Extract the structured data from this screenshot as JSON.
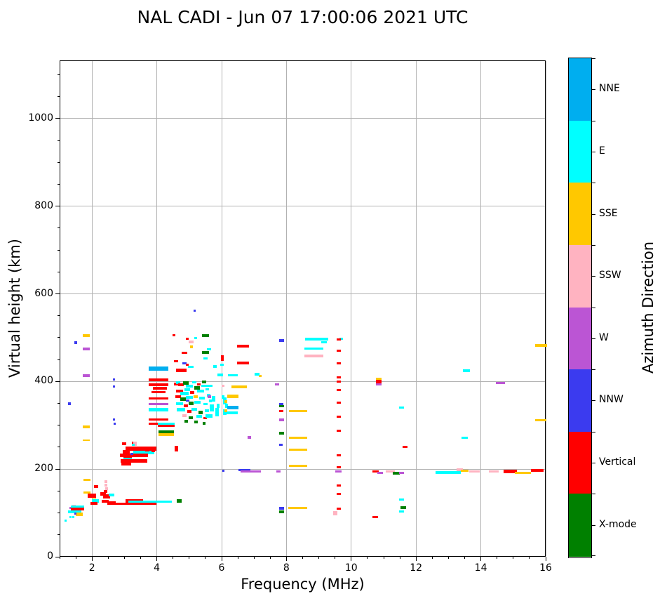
{
  "title": "NAL CADI - Jun 07 17:00:06 2021 UTC",
  "chart_data": {
    "type": "scatter",
    "title": "NAL CADI - Jun 07 17:00:06 2021 UTC",
    "xlabel": "Frequency (MHz)",
    "ylabel": "Virtual height (km)",
    "xlim": [
      1,
      16
    ],
    "ylim": [
      0,
      1133
    ],
    "xticks": [
      2,
      4,
      6,
      8,
      10,
      12,
      14,
      16
    ],
    "yticks": [
      0,
      200,
      400,
      600,
      800,
      1000
    ],
    "x_minor_step": 0.5,
    "y_minor_step": 50,
    "grid": true,
    "grid_color": "#b2b2b2",
    "colorbar": {
      "title": "Azimuth Direction",
      "segments": [
        {
          "key": "NNE",
          "label": "NNE",
          "color": "#00aeef"
        },
        {
          "key": "E",
          "label": "E",
          "color": "#00ffff"
        },
        {
          "key": "SSE",
          "label": "SSE",
          "color": "#ffc800"
        },
        {
          "key": "SSW",
          "label": "SSW",
          "color": "#ffb3c1"
        },
        {
          "key": "W",
          "label": "W",
          "color": "#bb55d4"
        },
        {
          "key": "NNW",
          "label": "NNW",
          "color": "#3b3bef"
        },
        {
          "key": "V",
          "label": "Vertical",
          "color": "#ff0000"
        },
        {
          "key": "X",
          "label": "X-mode",
          "color": "#008000"
        }
      ]
    },
    "point_format": "[freq_MHz, height_km, direction_key, width_px, height_px]",
    "points": [
      [
        1.33,
        112,
        "W",
        3,
        3
      ],
      [
        1.45,
        113,
        "SSW",
        5,
        7
      ],
      [
        1.38,
        107,
        "V",
        4,
        4
      ],
      [
        1.3,
        102,
        "E",
        4,
        4
      ],
      [
        1.55,
        114,
        "E",
        19,
        4
      ],
      [
        1.55,
        109,
        "V",
        19,
        4
      ],
      [
        1.5,
        103,
        "E",
        16,
        4
      ],
      [
        1.6,
        97,
        "SSE",
        10,
        5
      ],
      [
        1.48,
        99,
        "NNW",
        3,
        3
      ],
      [
        1.33,
        91,
        "E",
        3,
        3
      ],
      [
        1.43,
        91,
        "E",
        3,
        3
      ],
      [
        1.19,
        83,
        "E",
        3,
        3
      ],
      [
        1.85,
        176,
        "SSE",
        10,
        3
      ],
      [
        1.85,
        147,
        "SSE",
        10,
        3
      ],
      [
        2.0,
        140,
        "V",
        12,
        6
      ],
      [
        2.07,
        130,
        "SSE",
        6,
        3
      ],
      [
        2.1,
        127,
        "E",
        10,
        5
      ],
      [
        2.05,
        122,
        "V",
        10,
        4
      ],
      [
        2.13,
        160,
        "V",
        6,
        4
      ],
      [
        2.35,
        143,
        "V",
        8,
        5
      ],
      [
        2.45,
        138,
        "V",
        10,
        6
      ],
      [
        2.6,
        141,
        "E",
        8,
        4
      ],
      [
        2.43,
        172,
        "SSW",
        4,
        4
      ],
      [
        2.43,
        163,
        "SSW",
        4,
        4
      ],
      [
        2.45,
        155,
        "SSW",
        4,
        4
      ],
      [
        2.42,
        149,
        "V",
        5,
        4
      ],
      [
        2.4,
        126,
        "V",
        10,
        4
      ],
      [
        2.6,
        123,
        "V",
        12,
        5
      ],
      [
        3.3,
        127,
        "V",
        25,
        5
      ],
      [
        3.35,
        121,
        "V",
        58,
        3
      ],
      [
        3.8,
        125,
        "E",
        62,
        3
      ],
      [
        4.68,
        127,
        "X",
        7,
        5
      ],
      [
        2.68,
        404,
        "NNW",
        3,
        3
      ],
      [
        2.68,
        388,
        "NNW",
        3,
        3
      ],
      [
        2.68,
        314,
        "NNW",
        3,
        3
      ],
      [
        2.7,
        304,
        "NNW",
        3,
        3
      ],
      [
        3.27,
        260,
        "V",
        4,
        3
      ],
      [
        3.33,
        258,
        "SSW",
        5,
        6
      ],
      [
        3.05,
        240,
        "V",
        10,
        5
      ],
      [
        3.5,
        247,
        "V",
        44,
        6
      ],
      [
        3.6,
        238,
        "E",
        30,
        5
      ],
      [
        3.3,
        231,
        "V",
        40,
        5
      ],
      [
        3.1,
        227,
        "V",
        12,
        4
      ],
      [
        3.1,
        223,
        "E",
        12,
        3
      ],
      [
        3.3,
        219,
        "V",
        38,
        5
      ],
      [
        3.05,
        212,
        "V",
        14,
        5
      ],
      [
        3.22,
        234,
        "NNW",
        4,
        3
      ],
      [
        3.28,
        256,
        "E",
        4,
        3
      ],
      [
        3.0,
        258,
        "V",
        6,
        4
      ],
      [
        3.7,
        243,
        "V",
        6,
        3
      ],
      [
        3.9,
        241,
        "V",
        5,
        3
      ],
      [
        1.82,
        505,
        "SSE",
        10,
        4
      ],
      [
        1.5,
        488,
        "NNW",
        4,
        4
      ],
      [
        1.82,
        474,
        "W",
        10,
        4
      ],
      [
        1.82,
        414,
        "W",
        10,
        4
      ],
      [
        1.31,
        350,
        "NNW",
        4,
        4
      ],
      [
        1.82,
        296,
        "SSE",
        10,
        4
      ],
      [
        1.82,
        266,
        "SSE",
        10,
        2
      ],
      [
        4.05,
        430,
        "NNE",
        28,
        6
      ],
      [
        4.05,
        404,
        "V",
        28,
        4
      ],
      [
        4.05,
        392,
        "V",
        28,
        4
      ],
      [
        4.1,
        385,
        "V",
        20,
        4
      ],
      [
        4.05,
        376,
        "V",
        20,
        3
      ],
      [
        4.05,
        362,
        "V",
        28,
        3
      ],
      [
        4.05,
        349,
        "W",
        28,
        3
      ],
      [
        4.05,
        335,
        "E",
        28,
        5
      ],
      [
        4.05,
        314,
        "V",
        28,
        3
      ],
      [
        4.05,
        303,
        "V",
        28,
        3
      ],
      [
        4.3,
        304,
        "E",
        24,
        3
      ],
      [
        4.3,
        299,
        "V",
        24,
        3
      ],
      [
        4.28,
        285,
        "X",
        22,
        4
      ],
      [
        4.28,
        279,
        "SSE",
        22,
        4
      ],
      [
        4.6,
        250,
        "V",
        5,
        4
      ],
      [
        4.6,
        243,
        "V",
        5,
        4
      ],
      [
        4.6,
        394,
        "V",
        6,
        4
      ],
      [
        4.65,
        398,
        "E",
        6,
        4
      ],
      [
        4.75,
        392,
        "V",
        8,
        4
      ],
      [
        4.9,
        396,
        "X",
        8,
        5
      ],
      [
        5.0,
        390,
        "E",
        10,
        4
      ],
      [
        5.15,
        398,
        "E",
        6,
        3
      ],
      [
        5.3,
        394,
        "V",
        5,
        3
      ],
      [
        5.45,
        399,
        "X",
        6,
        4
      ],
      [
        5.25,
        386,
        "X",
        8,
        5
      ],
      [
        4.95,
        382,
        "E",
        8,
        4
      ],
      [
        4.7,
        378,
        "V",
        10,
        4
      ],
      [
        4.85,
        372,
        "E",
        12,
        5
      ],
      [
        5.1,
        375,
        "V",
        6,
        4
      ],
      [
        5.35,
        378,
        "E",
        10,
        4
      ],
      [
        5.55,
        383,
        "E",
        5,
        3
      ],
      [
        5.55,
        390,
        "E",
        16,
        3
      ],
      [
        4.65,
        366,
        "V",
        8,
        4
      ],
      [
        4.8,
        360,
        "X",
        8,
        5
      ],
      [
        5.0,
        363,
        "E",
        10,
        4
      ],
      [
        5.2,
        366,
        "SSE",
        6,
        4
      ],
      [
        5.4,
        362,
        "E",
        8,
        4
      ],
      [
        5.6,
        368,
        "E",
        5,
        4
      ],
      [
        4.7,
        350,
        "E",
        10,
        4
      ],
      [
        4.9,
        345,
        "V",
        6,
        4
      ],
      [
        5.05,
        350,
        "X",
        7,
        5
      ],
      [
        5.25,
        352,
        "E",
        9,
        4
      ],
      [
        5.5,
        348,
        "E",
        6,
        3
      ],
      [
        5.65,
        355,
        "E",
        4,
        4
      ],
      [
        4.75,
        336,
        "E",
        12,
        5
      ],
      [
        5.0,
        332,
        "V",
        6,
        4
      ],
      [
        5.15,
        336,
        "E",
        8,
        4
      ],
      [
        5.35,
        330,
        "X",
        6,
        5
      ],
      [
        5.55,
        334,
        "E",
        6,
        4
      ],
      [
        4.85,
        322,
        "SSW",
        6,
        4
      ],
      [
        5.05,
        318,
        "X",
        6,
        4
      ],
      [
        5.3,
        320,
        "E",
        8,
        4
      ],
      [
        5.5,
        316,
        "V",
        5,
        3
      ],
      [
        4.9,
        310,
        "X",
        5,
        4
      ],
      [
        5.2,
        308,
        "X",
        5,
        4
      ],
      [
        5.45,
        305,
        "X",
        4,
        4
      ],
      [
        5.6,
        322,
        "E",
        10,
        5
      ],
      [
        5.7,
        340,
        "E",
        6,
        10
      ],
      [
        5.75,
        360,
        "E",
        5,
        8
      ],
      [
        5.85,
        330,
        "E",
        5,
        12
      ],
      [
        5.9,
        345,
        "E",
        4,
        6
      ],
      [
        6.1,
        330,
        "E",
        5,
        8
      ],
      [
        6.15,
        345,
        "E",
        4,
        6
      ],
      [
        6.05,
        365,
        "E",
        4,
        5
      ],
      [
        5.62,
        365,
        "W",
        5,
        4
      ],
      [
        4.95,
        356,
        "NNW",
        5,
        3
      ],
      [
        6.1,
        355,
        "E",
        5,
        10
      ],
      [
        5.17,
        561,
        "NNW",
        3,
        3
      ],
      [
        4.53,
        505,
        "V",
        4,
        3
      ],
      [
        4.94,
        497,
        "V",
        4,
        3
      ],
      [
        5.05,
        490,
        "SSW",
        7,
        4
      ],
      [
        5.2,
        499,
        "E",
        4,
        3
      ],
      [
        5.5,
        505,
        "X",
        10,
        4
      ],
      [
        5.08,
        479,
        "SSE",
        4,
        4
      ],
      [
        5.6,
        474,
        "E",
        6,
        3
      ],
      [
        4.85,
        466,
        "V",
        8,
        3
      ],
      [
        5.5,
        466,
        "X",
        10,
        4
      ],
      [
        5.5,
        452,
        "E",
        6,
        3
      ],
      [
        4.6,
        446,
        "V",
        6,
        3
      ],
      [
        4.85,
        442,
        "NNW",
        6,
        3
      ],
      [
        4.95,
        439,
        "V",
        4,
        3
      ],
      [
        5.05,
        433,
        "E",
        8,
        3
      ],
      [
        4.75,
        426,
        "V",
        15,
        5
      ],
      [
        5.8,
        435,
        "E",
        5,
        4
      ],
      [
        6.03,
        454,
        "V",
        4,
        8
      ],
      [
        6.0,
        438,
        "E",
        5,
        3
      ],
      [
        5.95,
        415,
        "E",
        8,
        4
      ],
      [
        6.05,
        390,
        "SSW",
        4,
        3
      ],
      [
        6.65,
        481,
        "V",
        17,
        4
      ],
      [
        6.65,
        442,
        "V",
        17,
        4
      ],
      [
        6.35,
        414,
        "E",
        14,
        3
      ],
      [
        7.2,
        412,
        "SSE",
        4,
        3
      ],
      [
        7.1,
        417,
        "E",
        7,
        4
      ],
      [
        7.85,
        494,
        "NNW",
        7,
        4
      ],
      [
        7.7,
        394,
        "W",
        6,
        3
      ],
      [
        6.55,
        388,
        "SSE",
        22,
        4
      ],
      [
        6.35,
        366,
        "SSE",
        16,
        5
      ],
      [
        6.35,
        340,
        "NNE",
        16,
        5
      ],
      [
        6.3,
        328,
        "E",
        18,
        4
      ],
      [
        6.12,
        354,
        "SSE",
        4,
        4
      ],
      [
        6.12,
        333,
        "SSE",
        4,
        4
      ],
      [
        6.85,
        272,
        "W",
        5,
        4
      ],
      [
        7.85,
        348,
        "NNW",
        6,
        3
      ],
      [
        7.85,
        343,
        "X",
        7,
        3
      ],
      [
        7.85,
        332,
        "V",
        6,
        3
      ],
      [
        7.85,
        312,
        "W",
        7,
        4
      ],
      [
        7.85,
        282,
        "X",
        7,
        4
      ],
      [
        7.82,
        255,
        "NNW",
        5,
        3
      ],
      [
        7.85,
        110,
        "NNW",
        7,
        4
      ],
      [
        7.85,
        103,
        "X",
        7,
        4
      ],
      [
        8.35,
        332,
        "SSE",
        26,
        3
      ],
      [
        8.35,
        272,
        "SSE",
        26,
        3
      ],
      [
        8.35,
        244,
        "SSE",
        26,
        3
      ],
      [
        8.35,
        208,
        "SSE",
        26,
        3
      ],
      [
        8.35,
        112,
        "SSE",
        27,
        3
      ],
      [
        6.7,
        198,
        "NNW",
        17,
        3
      ],
      [
        6.9,
        194,
        "W",
        29,
        3
      ],
      [
        7.75,
        194,
        "W",
        6,
        3
      ],
      [
        6.05,
        197,
        "NNW",
        3,
        3
      ],
      [
        9.6,
        194,
        "W",
        9,
        3
      ],
      [
        8.93,
        497,
        "E",
        33,
        4
      ],
      [
        9.15,
        489,
        "E",
        8,
        3
      ],
      [
        9.7,
        497,
        "E",
        5,
        3
      ],
      [
        8.85,
        475,
        "E",
        27,
        3
      ],
      [
        8.85,
        458,
        "SSW",
        27,
        4
      ],
      [
        9.62,
        496,
        "V",
        6,
        3
      ],
      [
        9.62,
        471,
        "V",
        6,
        3
      ],
      [
        9.62,
        442,
        "V",
        6,
        3
      ],
      [
        9.62,
        410,
        "V",
        6,
        3
      ],
      [
        9.62,
        400,
        "V",
        6,
        3
      ],
      [
        9.62,
        380,
        "V",
        6,
        3
      ],
      [
        9.62,
        351,
        "V",
        6,
        3
      ],
      [
        9.62,
        320,
        "V",
        6,
        3
      ],
      [
        9.62,
        288,
        "V",
        6,
        3
      ],
      [
        9.62,
        232,
        "V",
        6,
        3
      ],
      [
        9.62,
        205,
        "V",
        6,
        3
      ],
      [
        9.62,
        162,
        "V",
        6,
        3
      ],
      [
        9.62,
        144,
        "V",
        6,
        3
      ],
      [
        9.62,
        109,
        "V",
        6,
        3
      ],
      [
        9.5,
        100,
        "SSW",
        6,
        6
      ],
      [
        10.85,
        407,
        "SSE",
        8,
        3
      ],
      [
        10.85,
        399,
        "V",
        8,
        6
      ],
      [
        10.85,
        393,
        "W",
        8,
        3
      ],
      [
        11.55,
        340,
        "E",
        7,
        3
      ],
      [
        11.65,
        250,
        "V",
        7,
        3
      ],
      [
        10.75,
        194,
        "V",
        9,
        3
      ],
      [
        10.9,
        192,
        "W",
        8,
        3
      ],
      [
        11.2,
        194,
        "SSW",
        13,
        3
      ],
      [
        11.4,
        190,
        "X",
        10,
        4
      ],
      [
        11.55,
        192,
        "W",
        7,
        3
      ],
      [
        11.55,
        131,
        "E",
        7,
        3
      ],
      [
        11.6,
        112,
        "X",
        8,
        4
      ],
      [
        11.55,
        103,
        "E",
        7,
        3
      ],
      [
        10.75,
        90,
        "V",
        8,
        3
      ],
      [
        13.0,
        192,
        "E",
        36,
        4
      ],
      [
        13.35,
        198,
        "SSW",
        9,
        4
      ],
      [
        13.5,
        196,
        "SSE",
        11,
        3
      ],
      [
        13.8,
        194,
        "SSW",
        15,
        3
      ],
      [
        13.55,
        424,
        "E",
        10,
        4
      ],
      [
        13.5,
        272,
        "E",
        9,
        3
      ],
      [
        14.6,
        396,
        "W",
        13,
        3
      ],
      [
        14.4,
        194,
        "SSW",
        14,
        3
      ],
      [
        14.9,
        194,
        "V",
        19,
        5
      ],
      [
        15.3,
        192,
        "SSE",
        23,
        3
      ],
      [
        15.75,
        197,
        "V",
        18,
        4
      ],
      [
        15.85,
        482,
        "SSE",
        17,
        4
      ],
      [
        15.85,
        311,
        "SSE",
        16,
        3
      ]
    ]
  }
}
